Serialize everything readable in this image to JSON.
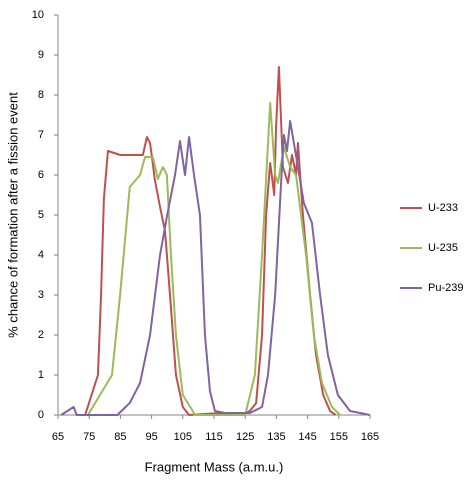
{
  "chart_data": {
    "type": "line",
    "x_label": "Fragment Mass (a.m.u.)",
    "y_label": "% chance of formation after a fission event",
    "xlim": [
      65,
      165
    ],
    "xticks": [
      65,
      75,
      85,
      95,
      105,
      115,
      125,
      135,
      145,
      155,
      165
    ],
    "ylim": [
      0,
      10
    ],
    "yticks": [
      0,
      1,
      2,
      3,
      4,
      5,
      6,
      7,
      8,
      9,
      10
    ],
    "grid": false,
    "legend": "right",
    "series": [
      {
        "name": "U-233",
        "color": "#c0504d",
        "x": [
          73.7,
          77.8,
          78.8,
          79.7,
          81,
          85,
          89,
          92.2,
          93.5,
          94.5,
          95.2,
          96,
          97.7,
          99.3,
          100.9,
          102.8,
          105,
          107,
          117,
          125,
          126.5,
          128.5,
          130.4,
          131.7,
          133,
          134.3,
          134.9,
          135.8,
          137.1,
          138.7,
          140,
          141.3,
          141.9,
          143.5,
          145.8,
          147.7,
          150,
          152.2,
          154
        ],
        "values": [
          0,
          1,
          3,
          5.4,
          6.6,
          6.5,
          6.5,
          6.5,
          6.95,
          6.8,
          6.4,
          5.9,
          5.2,
          4.6,
          3,
          1,
          0.2,
          0,
          0.05,
          0.05,
          0.1,
          0.3,
          2,
          5,
          6.3,
          5.5,
          7.2,
          8.7,
          6.2,
          5.8,
          6.5,
          6,
          6.8,
          5,
          3,
          1.5,
          0.5,
          0.1,
          0
        ]
      },
      {
        "name": "U-235",
        "color": "#9bbb59",
        "x": [
          74.6,
          82.3,
          84.9,
          88,
          91.3,
          92.9,
          95.4,
          97,
          98.6,
          99.9,
          101.2,
          102.8,
          105,
          109,
          125,
          128.1,
          130.4,
          133,
          134.6,
          135.5,
          137.4,
          139.4,
          141.3,
          144.5,
          147,
          149.6,
          152.8,
          155.4
        ],
        "values": [
          0,
          1,
          3,
          5.7,
          6,
          6.45,
          6.45,
          5.9,
          6.2,
          6,
          4,
          2,
          0.5,
          0,
          0,
          1,
          4,
          7.8,
          6,
          5.8,
          6.7,
          6.2,
          6,
          4,
          2,
          0.8,
          0.2,
          0
        ]
      },
      {
        "name": "Pu-239",
        "color": "#8064a2",
        "x": [
          66,
          70,
          71,
          84,
          88,
          91.3,
          94.5,
          97.7,
          100,
          102.5,
          104.1,
          105.7,
          107,
          108.6,
          110.5,
          112.1,
          113.7,
          115.3,
          118.5,
          126.5,
          130.4,
          132.3,
          134.6,
          136.5,
          137.4,
          138.4,
          139.4,
          140.6,
          141.9,
          143.8,
          146.4,
          149,
          151.5,
          154.7,
          158.6,
          165
        ],
        "values": [
          0,
          0.2,
          0,
          0,
          0.3,
          0.8,
          2,
          4,
          5,
          6,
          6.85,
          6,
          6.95,
          6,
          5,
          2,
          0.6,
          0.1,
          0.05,
          0.05,
          0.2,
          1,
          3,
          5.8,
          7,
          6.6,
          7.35,
          6.8,
          6.2,
          5.3,
          4.8,
          3,
          1.5,
          0.5,
          0.1,
          0
        ]
      }
    ]
  }
}
